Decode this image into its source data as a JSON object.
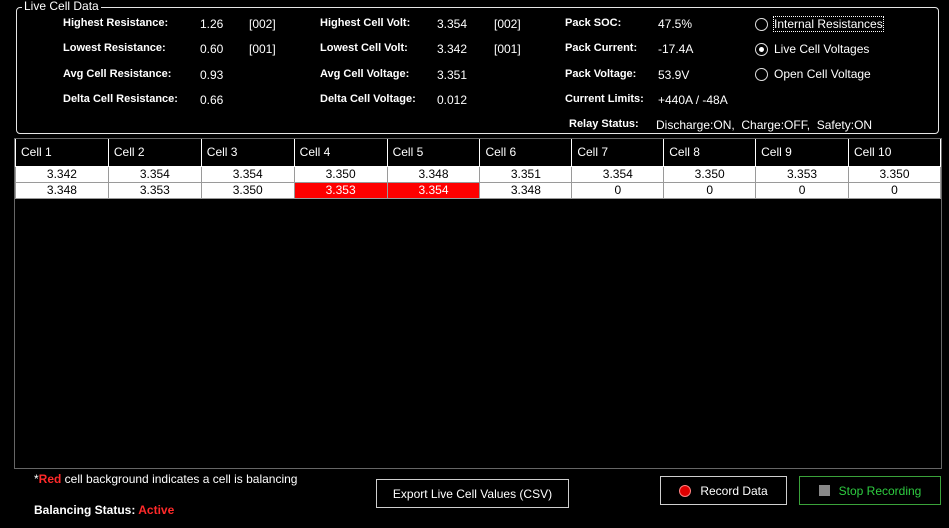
{
  "group": {
    "title": "Live Cell Data"
  },
  "stats": {
    "highest_resistance": {
      "label": "Highest Resistance:",
      "value": "1.26",
      "cell": "[002]"
    },
    "lowest_resistance": {
      "label": "Lowest Resistance:",
      "value": "0.60",
      "cell": "[001]"
    },
    "avg_resistance": {
      "label": "Avg Cell Resistance:",
      "value": "0.93"
    },
    "delta_resistance": {
      "label": "Delta Cell Resistance:",
      "value": "0.66"
    },
    "highest_volt": {
      "label": "Highest Cell Volt:",
      "value": "3.354",
      "cell": "[002]"
    },
    "lowest_volt": {
      "label": "Lowest Cell Volt:",
      "value": "3.342",
      "cell": "[001]"
    },
    "avg_voltage": {
      "label": "Avg Cell Voltage:",
      "value": "3.351"
    },
    "delta_voltage": {
      "label": "Delta Cell Voltage:",
      "value": "0.012"
    },
    "pack_soc": {
      "label": "Pack SOC:",
      "value": "47.5%"
    },
    "pack_current": {
      "label": "Pack Current:",
      "value": "-17.4A"
    },
    "pack_voltage": {
      "label": "Pack Voltage:",
      "value": "53.9V"
    },
    "current_limits": {
      "label": "Current Limits:",
      "value": "+440A / -48A"
    },
    "relay_status": {
      "label": "Relay Status:",
      "value": "Discharge:ON,  Charge:OFF,  Safety:ON"
    }
  },
  "view_options": [
    {
      "label": "Internal Resistances",
      "checked": false
    },
    {
      "label": "Live Cell Voltages",
      "checked": true
    },
    {
      "label": "Open Cell Voltage",
      "checked": false
    }
  ],
  "table": {
    "headers": [
      "Cell 1",
      "Cell 2",
      "Cell 3",
      "Cell 4",
      "Cell 5",
      "Cell 6",
      "Cell 7",
      "Cell 8",
      "Cell 9",
      "Cell 10"
    ],
    "rows": [
      [
        "3.342",
        "3.354",
        "3.354",
        "3.350",
        "3.348",
        "3.351",
        "3.354",
        "3.350",
        "3.353",
        "3.350"
      ],
      [
        "3.348",
        "3.353",
        "3.350",
        "3.353",
        "3.354",
        "3.348",
        "0",
        "0",
        "0",
        "0"
      ]
    ],
    "balancing": [
      [],
      [
        3,
        4
      ]
    ]
  },
  "legend": {
    "star": "*",
    "red_word": "Red",
    "rest": " cell background indicates a cell is balancing"
  },
  "balancing_status": {
    "label": "Balancing Status:",
    "value": "Active"
  },
  "buttons": {
    "export": "Export Live Cell Values (CSV)",
    "record": "Record Data",
    "stop": "Stop Recording"
  },
  "colors": {
    "balancing_cell": "#ff0000",
    "stop_text": "#2ecc40",
    "record_icon": "#e00000"
  }
}
